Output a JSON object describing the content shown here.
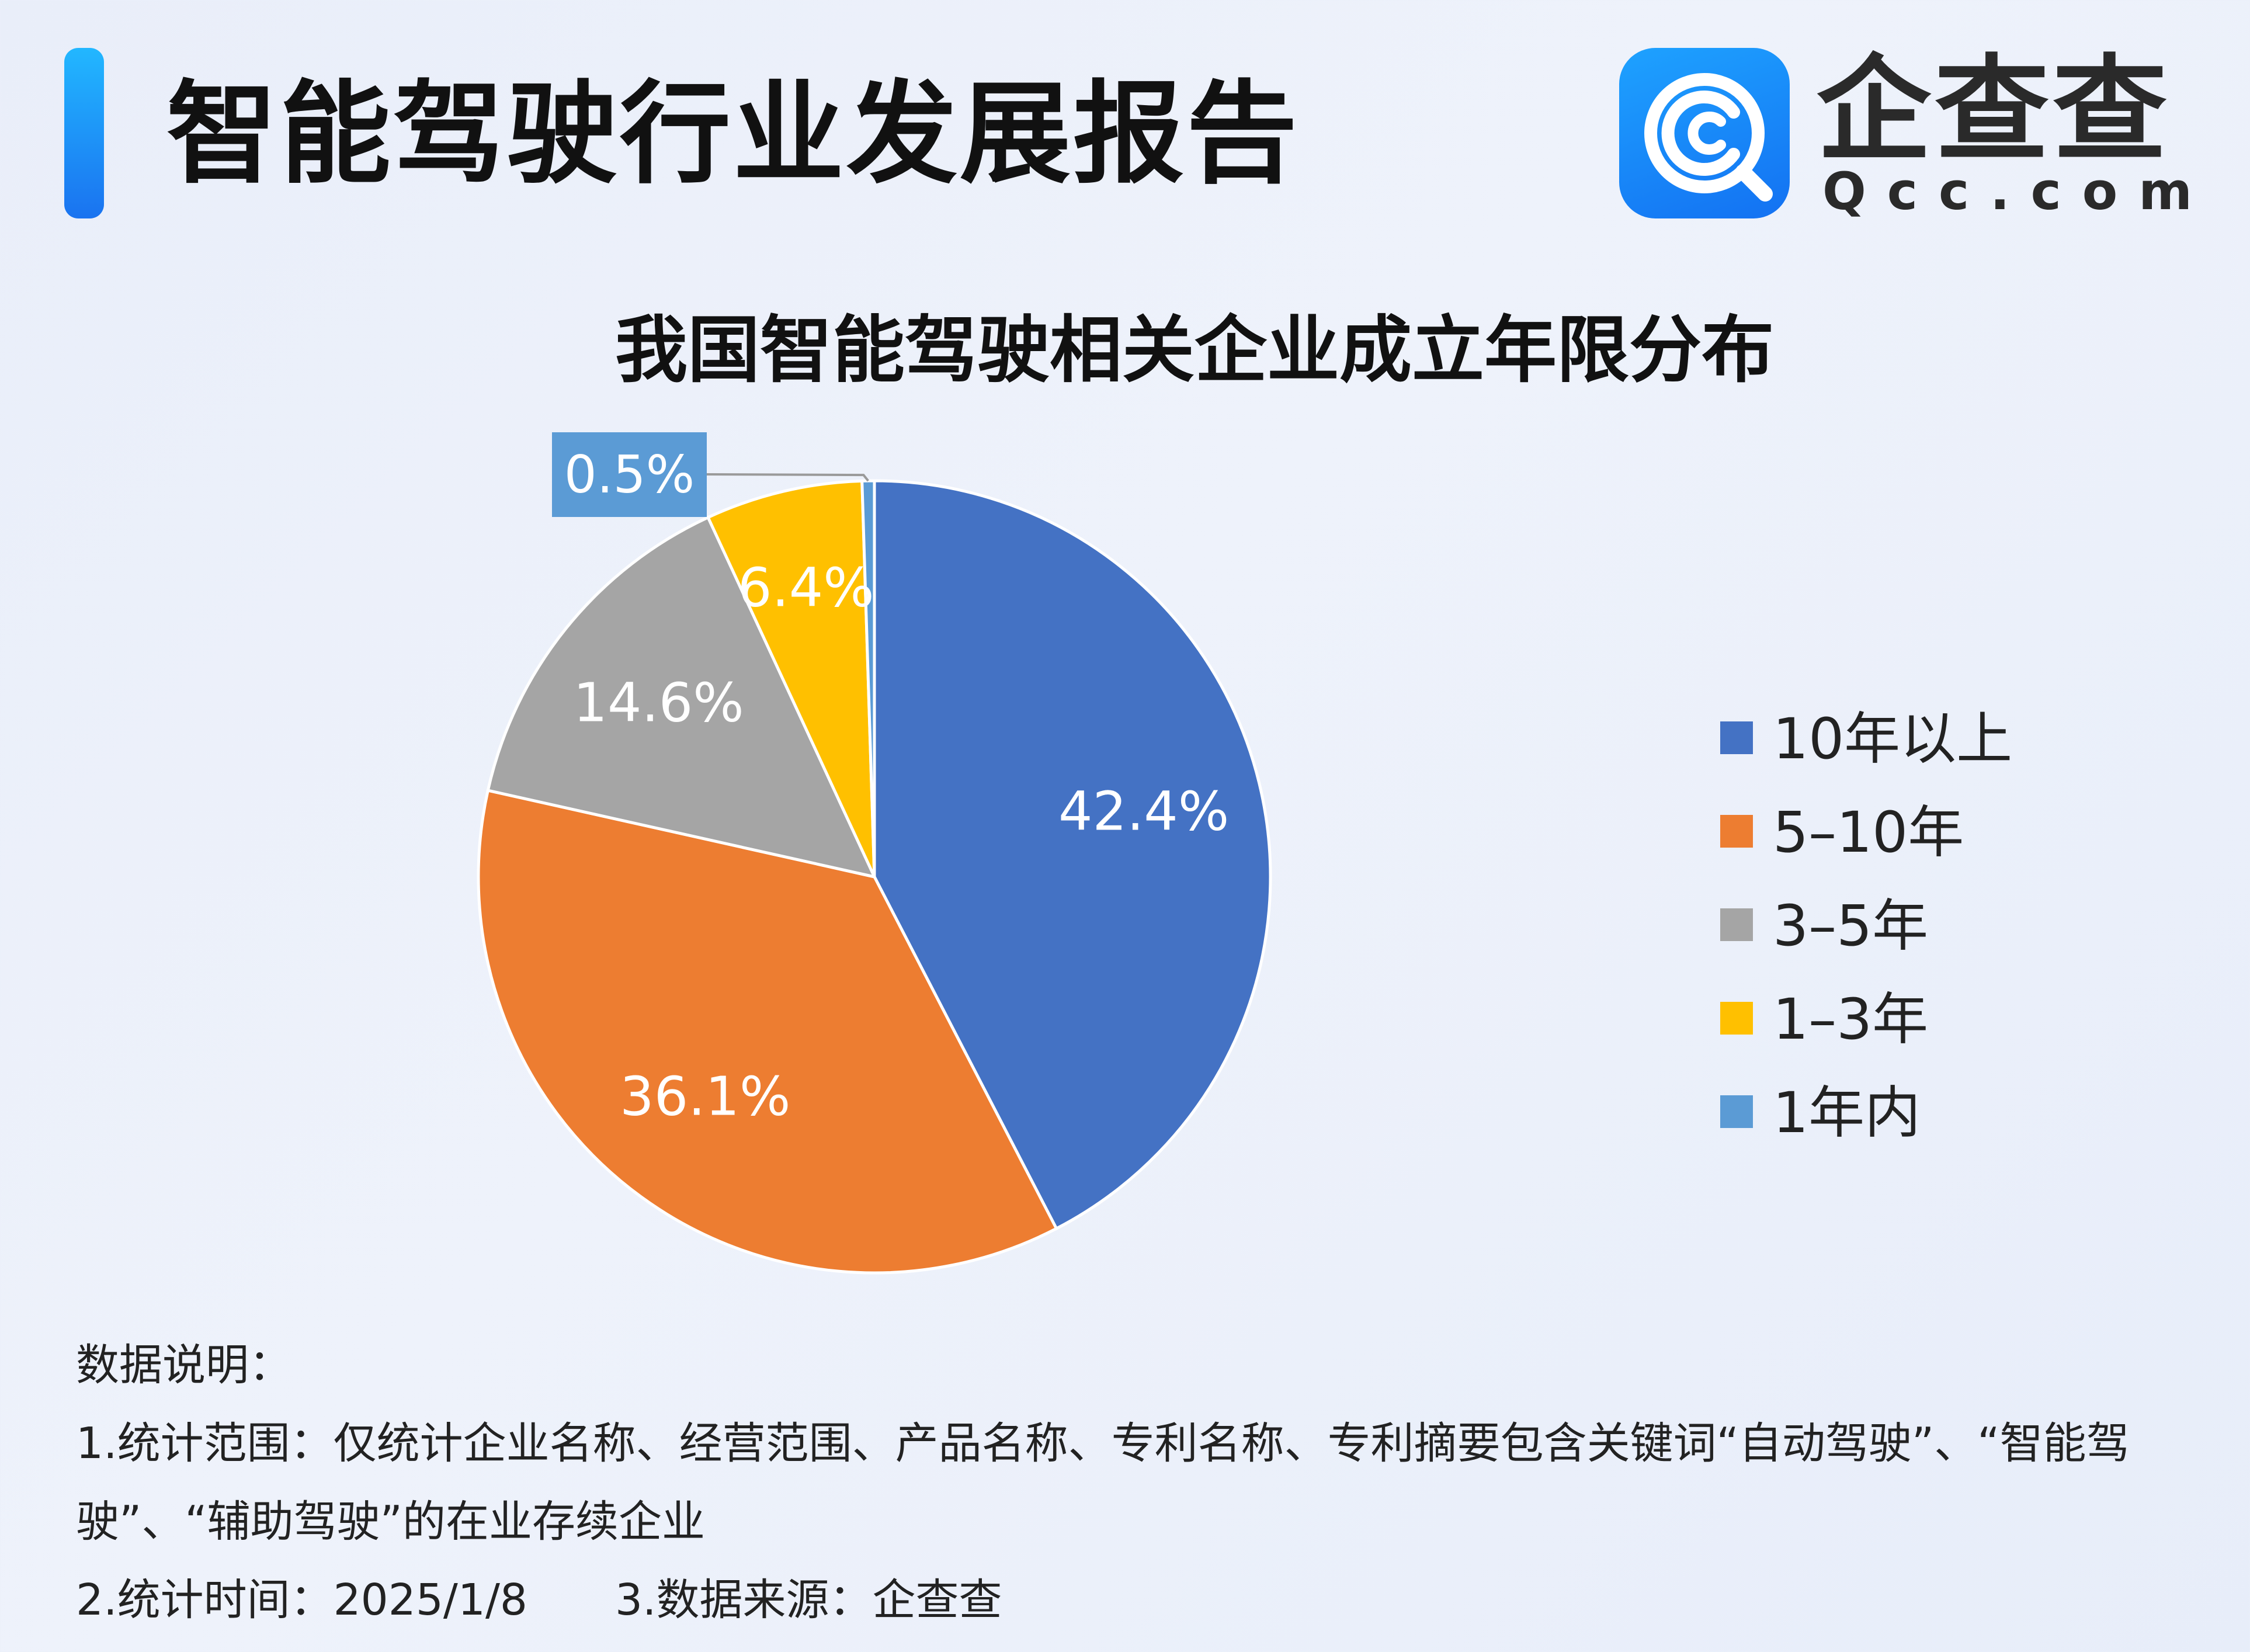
{
  "header": {
    "title": "智能驾驶行业发展报告",
    "brand_name": "企查查",
    "brand_domain": "Qcc.com",
    "brand_color": "#1a87f7"
  },
  "chart_data": {
    "type": "pie",
    "title": "我国智能驾驶相关企业成立年限分布",
    "categories": [
      "10年以上",
      "5–10年",
      "3–5年",
      "1–3年",
      "1年内"
    ],
    "values": [
      42.4,
      36.1,
      14.6,
      6.4,
      0.5
    ],
    "data_labels": [
      "42.4%",
      "36.1%",
      "14.6%",
      "6.4%",
      "0.5%"
    ],
    "colors": [
      "#4472c4",
      "#ed7d31",
      "#a5a5a5",
      "#ffc000",
      "#5b9bd5"
    ],
    "legend_position": "right",
    "start_angle": "12 o'clock, clockwise"
  },
  "notes": {
    "heading": "数据说明：",
    "line1": "1.统计范围：仅统计企业名称、经营范围、产品名称、专利名称、专利摘要包含关键词“自动驾驶”、“智能驾",
    "line2": "驶”、“辅助驾驶”的在业存续企业",
    "time": "2.统计时间：2025/1/8",
    "source": "3.数据来源：企查查"
  }
}
